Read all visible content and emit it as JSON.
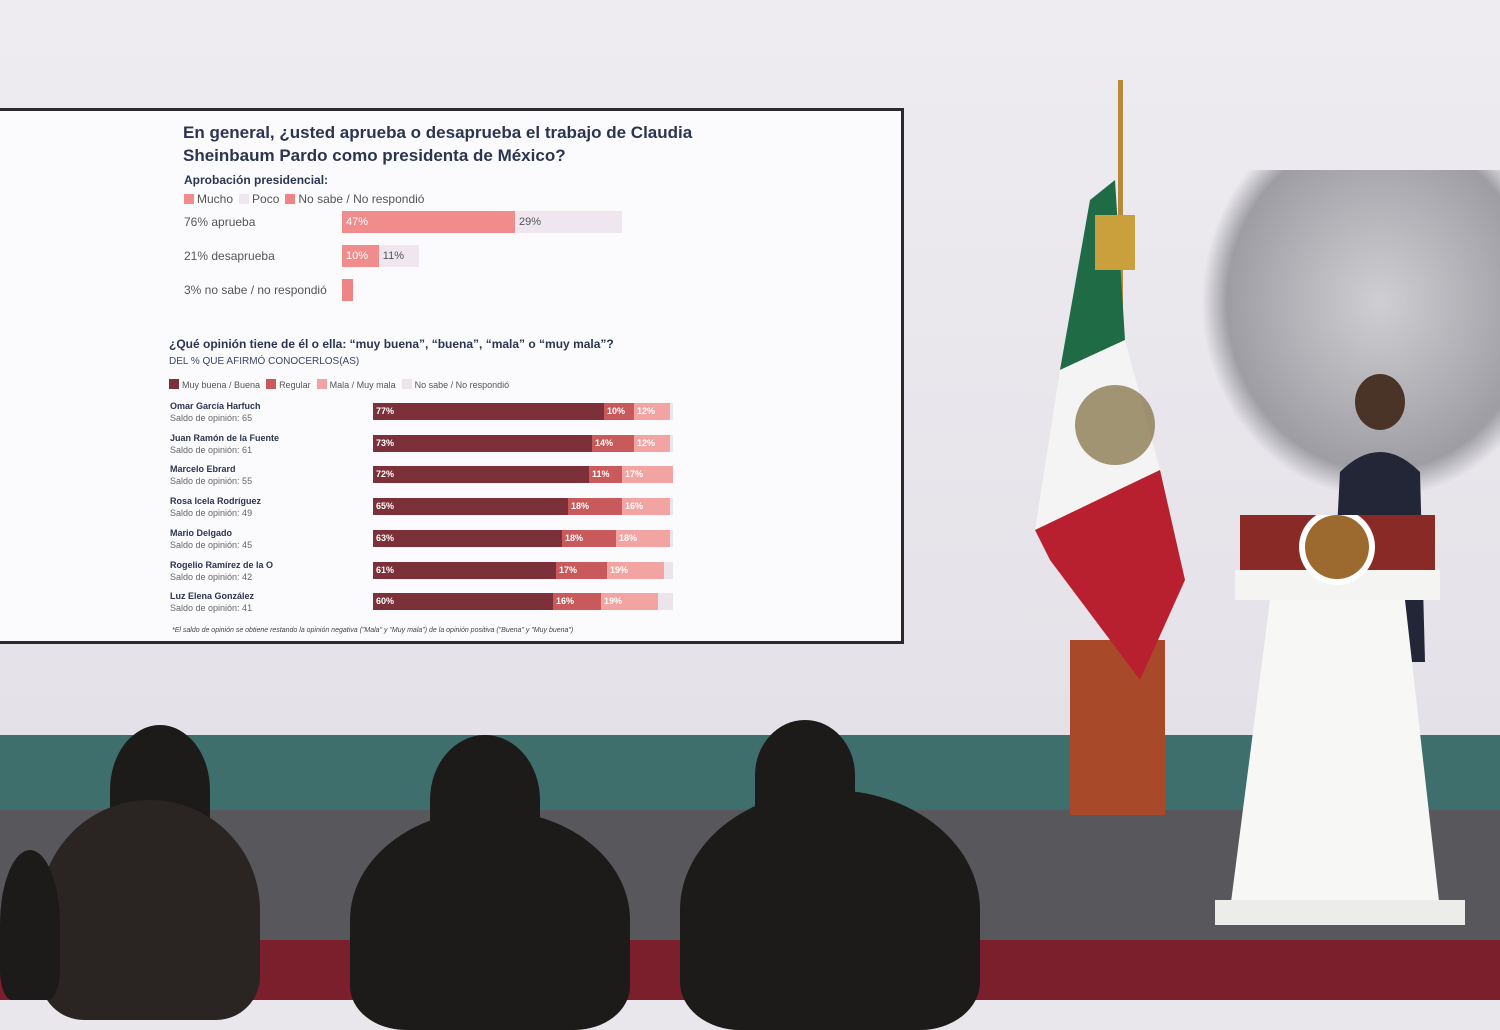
{
  "screen": {
    "title": "En general, ¿usted aprueba o desaprueba el trabajo de Claudia Sheinbaum Pardo como presidenta de México?",
    "note": "*El saldo de opinión se obtiene restando la opinión negativa (\"Mala\" y \"Muy mala\") de la opinión positiva (\"Buena\" y \"Muy buena\")"
  },
  "chart_data": [
    {
      "type": "bar",
      "orientation": "horizontal",
      "stacked": true,
      "subtitle": "Aprobación presidencial:",
      "legend": [
        "Mucho",
        "Poco",
        "No sabe / No respondió"
      ],
      "colors": [
        "#f08c8c",
        "#efe6ef",
        "#ee8585"
      ],
      "categories": [
        "76% aprueba",
        "21% desaprueba",
        "3% no sabe / no respondió"
      ],
      "series": [
        {
          "name": "Mucho",
          "values": [
            47,
            10,
            null
          ],
          "labels": [
            "47%",
            "10%",
            ""
          ]
        },
        {
          "name": "Poco",
          "values": [
            29,
            11,
            null
          ],
          "labels": [
            "29%",
            "11%",
            ""
          ]
        },
        {
          "name": "No sabe / No respondió",
          "values": [
            null,
            null,
            3
          ],
          "labels": [
            "",
            "",
            ""
          ]
        }
      ]
    },
    {
      "type": "bar",
      "orientation": "horizontal",
      "stacked": true,
      "title": "¿Qué opinión tiene de él o ella: “muy buena”, “buena”, “mala” o “muy mala”?",
      "subtitle": "DEL % QUE AFIRMÓ CONOCERLOS(AS)",
      "legend": [
        "Muy buena / Buena",
        "Regular",
        "Mala / Muy mala",
        "No sabe / No respondió"
      ],
      "colors": [
        "#7c3039",
        "#c85a5c",
        "#f2a4a2",
        "#ebe4ea"
      ],
      "categories": [
        "Omar García Harfuch",
        "Juan Ramón de la Fuente",
        "Marcelo Ebrard",
        "Rosa Icela Rodríguez",
        "Mario Delgado",
        "Rogelio Ramírez de la O",
        "Luz Elena González"
      ],
      "saldo": [
        "Saldo de opinión: 65",
        "Saldo de opinión: 61",
        "Saldo de opinión: 55",
        "Saldo de opinión: 49",
        "Saldo de opinión: 45",
        "Saldo de opinión: 42",
        "Saldo de opinión: 41"
      ],
      "series": [
        {
          "name": "Muy buena / Buena",
          "values": [
            77,
            73,
            72,
            65,
            63,
            61,
            60
          ]
        },
        {
          "name": "Regular",
          "values": [
            10,
            14,
            11,
            18,
            18,
            17,
            16
          ]
        },
        {
          "name": "Mala / Muy mala",
          "values": [
            12,
            12,
            17,
            16,
            18,
            19,
            19
          ]
        },
        {
          "name": "No sabe / No respondió",
          "values": [
            1,
            1,
            0,
            1,
            1,
            3,
            5
          ]
        }
      ],
      "xlim": [
        0,
        100
      ]
    }
  ]
}
